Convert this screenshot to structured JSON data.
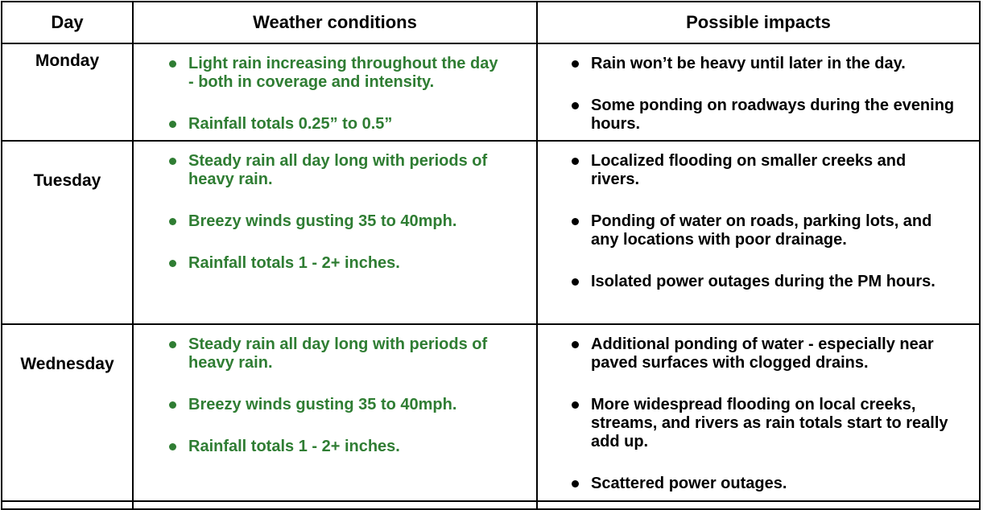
{
  "table": {
    "accent_green": "#2f7d33",
    "text_color": "#000000",
    "border_color": "#000000",
    "columns": [
      "Day",
      "Weather conditions",
      "Possible impacts"
    ],
    "rows": [
      {
        "day": "Monday",
        "weather": [
          "Light rain increasing throughout the day - both in coverage and intensity.",
          "Rainfall totals 0.25” to 0.5”"
        ],
        "impacts": [
          "Rain won’t be heavy until later in the day.",
          "Some ponding on roadways during the evening hours."
        ]
      },
      {
        "day": "Tuesday",
        "weather": [
          "Steady rain all day long with periods of heavy rain.",
          "Breezy winds gusting 35 to 40mph.",
          "Rainfall totals 1 - 2+ inches."
        ],
        "impacts": [
          "Localized flooding on smaller creeks and rivers.",
          "Ponding of water on roads, parking lots, and any locations with poor drainage.",
          "Isolated power outages during the PM hours."
        ]
      },
      {
        "day": "Wednesday",
        "weather": [
          "Steady rain all day long with periods of heavy rain.",
          "Breezy winds gusting 35 to 40mph.",
          "Rainfall totals 1 - 2+ inches."
        ],
        "impacts": [
          "Additional ponding of water - especially near paved surfaces with clogged drains.",
          "More widespread flooding on local creeks, streams, and rivers as rain totals start to really add up.",
          "Scattered power outages."
        ]
      }
    ]
  }
}
